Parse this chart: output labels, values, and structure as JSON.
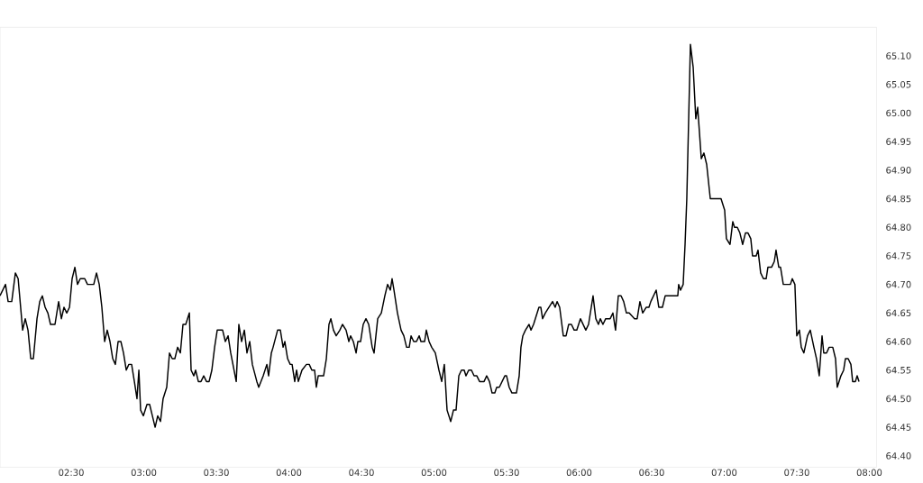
{
  "chart_data": {
    "type": "line",
    "x": [
      2.009,
      2.047,
      2.065,
      2.09,
      2.115,
      2.134,
      2.165,
      2.183,
      2.202,
      2.221,
      2.239,
      2.264,
      2.283,
      2.301,
      2.32,
      2.339,
      2.357,
      2.388,
      2.413,
      2.432,
      2.45,
      2.469,
      2.488,
      2.506,
      2.525,
      2.543,
      2.562,
      2.593,
      2.612,
      2.655,
      2.674,
      2.693,
      2.711,
      2.73,
      2.748,
      2.767,
      2.786,
      2.804,
      2.823,
      2.842,
      2.86,
      2.879,
      2.897,
      2.916,
      2.935,
      2.953,
      2.966,
      2.978,
      2.997,
      3.022,
      3.04,
      3.059,
      3.078,
      3.096,
      3.115,
      3.133,
      3.158,
      3.177,
      3.196,
      3.214,
      3.233,
      3.252,
      3.27,
      3.289,
      3.314,
      3.326,
      3.345,
      3.357,
      3.376,
      3.394,
      3.413,
      3.432,
      3.45,
      3.469,
      3.488,
      3.506,
      3.543,
      3.562,
      3.581,
      3.599,
      3.637,
      3.655,
      3.674,
      3.693,
      3.711,
      3.73,
      3.748,
      3.779,
      3.792,
      3.823,
      3.848,
      3.86,
      3.879,
      3.891,
      3.922,
      3.941,
      3.96,
      3.972,
      3.991,
      4.009,
      4.022,
      4.04,
      4.053,
      4.065,
      4.09,
      4.121,
      4.14,
      4.158,
      4.177,
      4.189,
      4.202,
      4.239,
      4.258,
      4.276,
      4.289,
      4.307,
      4.326,
      4.351,
      4.369,
      4.394,
      4.413,
      4.425,
      4.444,
      4.463,
      4.475,
      4.494,
      4.512,
      4.531,
      4.55,
      4.574,
      4.587,
      4.612,
      4.637,
      4.661,
      4.68,
      4.699,
      4.711,
      4.724,
      4.748,
      4.773,
      4.792,
      4.811,
      4.829,
      4.842,
      4.86,
      4.879,
      4.898,
      4.91,
      4.935,
      4.947,
      4.966,
      4.984,
      5.009,
      5.034,
      5.053,
      5.071,
      5.09,
      5.115,
      5.134,
      5.152,
      5.171,
      5.189,
      5.208,
      5.22,
      5.239,
      5.258,
      5.276,
      5.295,
      5.314,
      5.345,
      5.363,
      5.382,
      5.4,
      5.419,
      5.432,
      5.45,
      5.469,
      5.488,
      5.5,
      5.518,
      5.537,
      5.568,
      5.587,
      5.599,
      5.612,
      5.63,
      5.655,
      5.668,
      5.686,
      5.723,
      5.736,
      5.748,
      5.767,
      5.792,
      5.817,
      5.835,
      5.848,
      5.866,
      5.891,
      5.91,
      5.928,
      5.947,
      5.966,
      5.984,
      6.009,
      6.046,
      6.065,
      6.096,
      6.115,
      6.133,
      6.146,
      6.164,
      6.183,
      6.214,
      6.233,
      6.251,
      6.27,
      6.289,
      6.307,
      6.326,
      6.345,
      6.382,
      6.4,
      6.419,
      6.438,
      6.463,
      6.481,
      6.494,
      6.531,
      6.549,
      6.574,
      6.593,
      6.624,
      6.68,
      6.686,
      6.699,
      6.717,
      6.73,
      6.742,
      6.767,
      6.786,
      6.804,
      6.817,
      6.842,
      6.86,
      6.879,
      6.904,
      6.96,
      6.978,
      7.003,
      7.015,
      7.04,
      7.059,
      7.071,
      7.09,
      7.108,
      7.127,
      7.146,
      7.164,
      7.183,
      7.195,
      7.22,
      7.233,
      7.251,
      7.27,
      7.289,
      7.301,
      7.326,
      7.345,
      7.357,
      7.376,
      7.388,
      7.407,
      7.456,
      7.469,
      7.487,
      7.5,
      7.518,
      7.531,
      7.549,
      7.574,
      7.593,
      7.618,
      7.636,
      7.655,
      7.674,
      7.686,
      7.705,
      7.723,
      7.748,
      7.767,
      7.779,
      7.804,
      7.823,
      7.835,
      7.854,
      7.873,
      7.885,
      7.904,
      7.916,
      7.929
    ],
    "series": [
      {
        "color": "#000000",
        "values": [
          64.68,
          64.7,
          64.67,
          64.67,
          64.72,
          64.71,
          64.62,
          64.64,
          64.62,
          64.57,
          64.57,
          64.64,
          64.67,
          64.68,
          64.66,
          64.65,
          64.63,
          64.63,
          64.67,
          64.64,
          64.66,
          64.65,
          64.66,
          64.71,
          64.73,
          64.7,
          64.71,
          64.71,
          64.7,
          64.7,
          64.72,
          64.7,
          64.66,
          64.6,
          64.62,
          64.6,
          64.57,
          64.56,
          64.6,
          64.6,
          64.58,
          64.55,
          64.56,
          64.56,
          64.53,
          64.5,
          64.55,
          64.48,
          64.47,
          64.49,
          64.49,
          64.47,
          64.45,
          64.47,
          64.46,
          64.5,
          64.52,
          64.58,
          64.57,
          64.57,
          64.59,
          64.58,
          64.63,
          64.63,
          64.65,
          64.55,
          64.54,
          64.55,
          64.53,
          64.53,
          64.54,
          64.53,
          64.53,
          64.55,
          64.59,
          64.62,
          64.62,
          64.6,
          64.61,
          64.58,
          64.53,
          64.63,
          64.6,
          64.62,
          64.58,
          64.6,
          64.56,
          64.53,
          64.52,
          64.54,
          64.56,
          64.54,
          64.58,
          64.59,
          64.62,
          64.62,
          64.59,
          64.6,
          64.57,
          64.56,
          64.56,
          64.53,
          64.55,
          64.53,
          64.55,
          64.56,
          64.56,
          64.55,
          64.55,
          64.52,
          64.54,
          64.54,
          64.57,
          64.63,
          64.64,
          64.62,
          64.61,
          64.62,
          64.63,
          64.62,
          64.6,
          64.61,
          64.6,
          64.58,
          64.6,
          64.6,
          64.63,
          64.64,
          64.63,
          64.59,
          64.58,
          64.64,
          64.65,
          64.68,
          64.7,
          64.69,
          64.71,
          64.69,
          64.65,
          64.62,
          64.61,
          64.59,
          64.59,
          64.61,
          64.6,
          64.6,
          64.61,
          64.6,
          64.6,
          64.62,
          64.6,
          64.59,
          64.58,
          64.55,
          64.53,
          64.56,
          64.48,
          64.46,
          64.48,
          64.48,
          64.54,
          64.55,
          64.55,
          64.54,
          64.55,
          64.55,
          64.54,
          64.54,
          64.53,
          64.53,
          64.54,
          64.53,
          64.51,
          64.51,
          64.52,
          64.52,
          64.53,
          64.54,
          64.54,
          64.52,
          64.51,
          64.51,
          64.54,
          64.59,
          64.61,
          64.62,
          64.63,
          64.62,
          64.63,
          64.66,
          64.66,
          64.64,
          64.65,
          64.66,
          64.67,
          64.66,
          64.67,
          64.66,
          64.61,
          64.61,
          64.63,
          64.63,
          64.62,
          64.62,
          64.64,
          64.62,
          64.63,
          64.68,
          64.64,
          64.63,
          64.64,
          64.63,
          64.64,
          64.64,
          64.65,
          64.62,
          64.68,
          64.68,
          64.67,
          64.65,
          64.65,
          64.64,
          64.64,
          64.67,
          64.65,
          64.66,
          64.66,
          64.67,
          64.69,
          64.66,
          64.66,
          64.68,
          64.68,
          64.68,
          64.7,
          64.69,
          64.7,
          64.77,
          64.85,
          65.12,
          65.08,
          64.99,
          65.01,
          64.92,
          64.93,
          64.91,
          64.85,
          64.85,
          64.85,
          64.83,
          64.78,
          64.77,
          64.81,
          64.8,
          64.8,
          64.79,
          64.77,
          64.79,
          64.79,
          64.78,
          64.75,
          64.75,
          64.76,
          64.72,
          64.71,
          64.71,
          64.73,
          64.73,
          64.74,
          64.76,
          64.73,
          64.73,
          64.7,
          64.7,
          64.71,
          64.7,
          64.61,
          64.62,
          64.59,
          64.58,
          64.61,
          64.62,
          64.59,
          64.57,
          64.54,
          64.61,
          64.58,
          64.58,
          64.59,
          64.59,
          64.57,
          64.52,
          64.54,
          64.55,
          64.57,
          64.57,
          64.56,
          64.53,
          64.53,
          64.54,
          64.53
        ]
      }
    ],
    "xlim": [
      2.009,
      8.05
    ],
    "ylim": [
      64.38,
      65.15
    ],
    "xticks": [
      {
        "value": 2.5,
        "label": "02:30"
      },
      {
        "value": 3.0,
        "label": "03:00"
      },
      {
        "value": 3.5,
        "label": "03:30"
      },
      {
        "value": 4.0,
        "label": "04:00"
      },
      {
        "value": 4.5,
        "label": "04:30"
      },
      {
        "value": 5.0,
        "label": "05:00"
      },
      {
        "value": 5.5,
        "label": "05:30"
      },
      {
        "value": 6.0,
        "label": "06:00"
      },
      {
        "value": 6.5,
        "label": "06:30"
      },
      {
        "value": 7.0,
        "label": "07:00"
      },
      {
        "value": 7.5,
        "label": "07:30"
      },
      {
        "value": 8.0,
        "label": "08:00"
      }
    ],
    "yticks": [
      {
        "value": 64.4,
        "label": "64.40"
      },
      {
        "value": 64.45,
        "label": "64.45"
      },
      {
        "value": 64.5,
        "label": "64.50"
      },
      {
        "value": 64.55,
        "label": "64.55"
      },
      {
        "value": 64.6,
        "label": "64.60"
      },
      {
        "value": 64.65,
        "label": "64.65"
      },
      {
        "value": 64.7,
        "label": "64.70"
      },
      {
        "value": 64.75,
        "label": "64.75"
      },
      {
        "value": 64.8,
        "label": "64.80"
      },
      {
        "value": 64.85,
        "label": "64.85"
      },
      {
        "value": 64.9,
        "label": "64.90"
      },
      {
        "value": 64.95,
        "label": "64.95"
      },
      {
        "value": 65.0,
        "label": "65.00"
      },
      {
        "value": 65.05,
        "label": "65.05"
      },
      {
        "value": 65.1,
        "label": "65.10"
      }
    ]
  }
}
